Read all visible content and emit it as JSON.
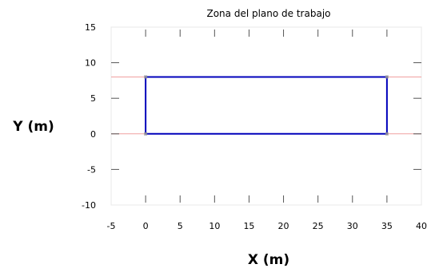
{
  "chart_data": {
    "type": "line",
    "title": "Zona del plano de trabajo",
    "xlabel": "X (m)",
    "ylabel": "Y (m)",
    "xlim": [
      -5,
      40
    ],
    "ylim": [
      -10,
      15
    ],
    "xticks": [
      -5,
      0,
      5,
      10,
      15,
      20,
      25,
      30,
      35,
      40
    ],
    "yticks": [
      -10,
      -5,
      0,
      5,
      10,
      15
    ],
    "grid": false,
    "reference_lines_y": [
      0,
      8
    ],
    "series": [
      {
        "x": [
          0,
          35,
          35,
          0,
          0
        ],
        "y": [
          0,
          0,
          8,
          8,
          0
        ]
      }
    ],
    "colors": {
      "outline": "#0000bb",
      "reference_line": "#f0a0a0",
      "axis_frame": "#e8e8e8",
      "tick": "#555555",
      "corner_marker": "#999999"
    }
  }
}
